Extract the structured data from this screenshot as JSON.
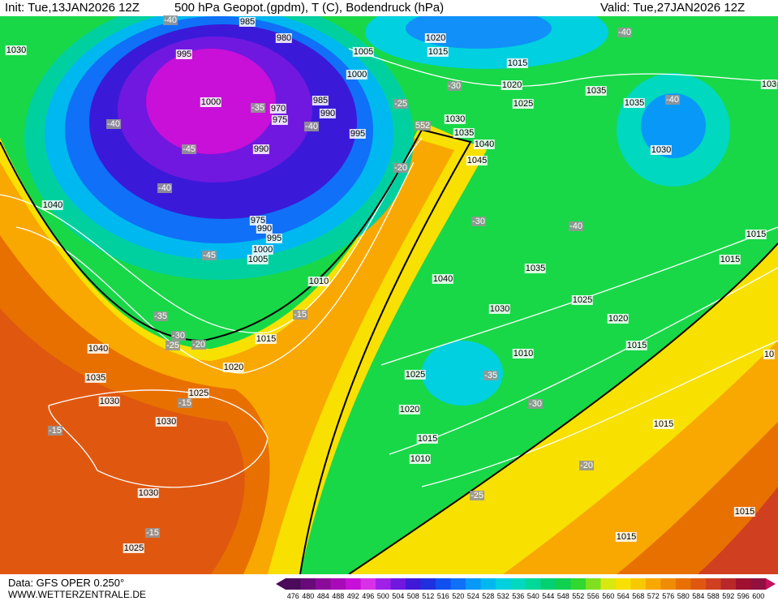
{
  "header": {
    "init": "Init: Tue,13JAN2026 12Z",
    "title": "500 hPa Geopot.(gpdm), T (C), Bodendruck (hPa)",
    "valid": "Valid: Tue,27JAN2026 12Z"
  },
  "footer": {
    "source": "Data: GFS OPER 0.250°",
    "site": "WWW.WETTERZENTRALE.DE"
  },
  "pressure_labels": [
    "985",
    "995",
    "980",
    "1005",
    "1000",
    "1000",
    "970",
    "975",
    "985",
    "990",
    "995",
    "990",
    "975",
    "990",
    "995",
    "1000",
    "1005",
    "1010",
    "1015",
    "1020",
    "1025",
    "1030",
    "1030",
    "1025",
    "1030",
    "1035",
    "1040",
    "1040",
    "1030",
    "1020",
    "1015",
    "1015",
    "1020",
    "1025",
    "1030",
    "1035",
    "1040",
    "1045",
    "1035",
    "1035",
    "1030",
    "1040",
    "1035",
    "1030",
    "1025",
    "1020",
    "1015",
    "1010",
    "1025",
    "1020",
    "1015",
    "1010",
    "1015",
    "1015",
    "1015",
    "1015",
    "1015",
    "103",
    "10"
  ],
  "temperature_labels": [
    "-40",
    "-40",
    "-40",
    "-40",
    "-45",
    "-40",
    "-45",
    "-35",
    "-40",
    "-30",
    "-25",
    "-20",
    "-30",
    "-40",
    "-35",
    "-30",
    "-25",
    "-20",
    "-15",
    "-15",
    "-15",
    "-15",
    "-35",
    "-30",
    "-20",
    "-25",
    "552"
  ],
  "colorbar": {
    "ticks": [
      476,
      480,
      484,
      488,
      492,
      496,
      500,
      504,
      508,
      512,
      516,
      520,
      524,
      528,
      532,
      536,
      540,
      544,
      548,
      552,
      556,
      560,
      564,
      568,
      572,
      576,
      580,
      584,
      588,
      592,
      596,
      600
    ],
    "colors": [
      "#4b0a5a",
      "#6a0a7a",
      "#8a0a9a",
      "#a80ab8",
      "#c810d8",
      "#d830e8",
      "#a020e8",
      "#7018e0",
      "#4018d8",
      "#2030e0",
      "#1050f0",
      "#1070f8",
      "#0898f8",
      "#00b8f0",
      "#00d0e0",
      "#00d8c0",
      "#00d898",
      "#00d070",
      "#10d050",
      "#30d830",
      "#80e020",
      "#d8e810",
      "#f8e000",
      "#f8c800",
      "#f8a800",
      "#f08c00",
      "#e87000",
      "#e05810",
      "#d04020",
      "#b82828",
      "#a01030",
      "#901040"
    ]
  }
}
